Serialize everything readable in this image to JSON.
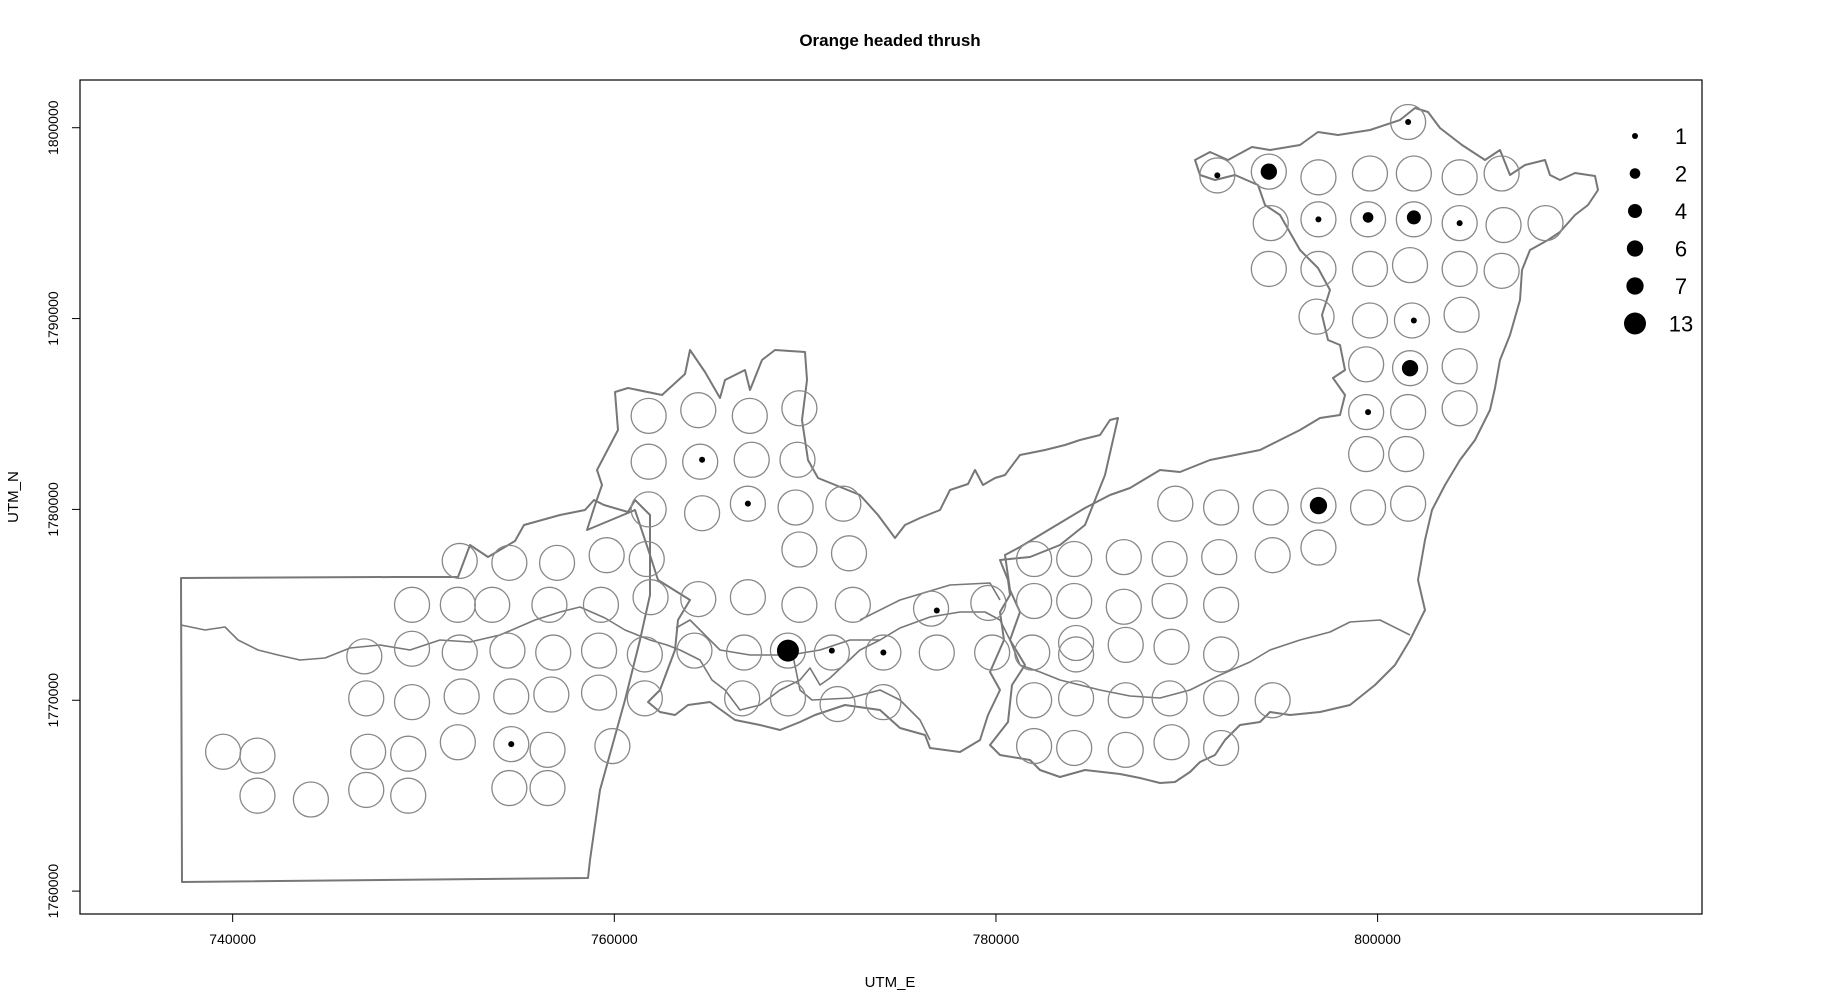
{
  "chart_data": {
    "type": "scatter",
    "title": "Orange headed thrush",
    "xlabel": "UTM_E",
    "ylabel": "UTM_N",
    "xlim": [
      732000,
      817000
    ],
    "ylim": [
      1758800,
      1802500
    ],
    "x_ticks": [
      740000,
      760000,
      780000,
      800000
    ],
    "y_ticks": [
      1760000,
      1770000,
      1780000,
      1790000,
      1800000
    ],
    "x_tick_labels": [
      "740000",
      "760000",
      "780000",
      "800000"
    ],
    "y_tick_labels": [
      "1760000",
      "1770000",
      "1780000",
      "1790000",
      "1800000"
    ],
    "grid": false,
    "legend_position": "top-right",
    "legend": [
      {
        "label": "1",
        "value": 1
      },
      {
        "label": "2",
        "value": 2
      },
      {
        "label": "4",
        "value": 4
      },
      {
        "label": "6",
        "value": 6
      },
      {
        "label": "7",
        "value": 7
      },
      {
        "label": "13",
        "value": 13
      }
    ],
    "sampling_points": [
      [
        739500,
        1767300
      ],
      [
        741300,
        1767100
      ],
      [
        741300,
        1765000
      ],
      [
        744100,
        1764800
      ],
      [
        747100,
        1767300
      ],
      [
        747000,
        1765300
      ],
      [
        749200,
        1767200
      ],
      [
        749200,
        1765000
      ],
      [
        751800,
        1767800
      ],
      [
        754600,
        1767700
      ],
      [
        756500,
        1767400
      ],
      [
        754500,
        1765400
      ],
      [
        756500,
        1765400
      ],
      [
        759900,
        1767600
      ],
      [
        747000,
        1770100
      ],
      [
        749400,
        1769900
      ],
      [
        752000,
        1770200
      ],
      [
        754600,
        1770200
      ],
      [
        756700,
        1770300
      ],
      [
        759200,
        1770400
      ],
      [
        761600,
        1770100
      ],
      [
        746900,
        1772300
      ],
      [
        749400,
        1772700
      ],
      [
        751900,
        1772500
      ],
      [
        754400,
        1772600
      ],
      [
        756800,
        1772500
      ],
      [
        759200,
        1772600
      ],
      [
        761600,
        1772400
      ],
      [
        764200,
        1772600
      ],
      [
        766800,
        1772500
      ],
      [
        769100,
        1772600
      ],
      [
        771400,
        1772500
      ],
      [
        774100,
        1772500
      ],
      [
        776900,
        1772500
      ],
      [
        779800,
        1772500
      ],
      [
        769100,
        1770100
      ],
      [
        771700,
        1769800
      ],
      [
        774100,
        1769900
      ],
      [
        766700,
        1770100
      ],
      [
        749400,
        1775000
      ],
      [
        751800,
        1775000
      ],
      [
        753600,
        1775000
      ],
      [
        756600,
        1775000
      ],
      [
        759300,
        1775000
      ],
      [
        761900,
        1775400
      ],
      [
        764400,
        1775300
      ],
      [
        767000,
        1775400
      ],
      [
        769700,
        1775000
      ],
      [
        772500,
        1775000
      ],
      [
        776600,
        1774800
      ],
      [
        779600,
        1775100
      ],
      [
        751900,
        1777300
      ],
      [
        754500,
        1777200
      ],
      [
        757000,
        1777200
      ],
      [
        759600,
        1777600
      ],
      [
        761700,
        1777400
      ],
      [
        769700,
        1777900
      ],
      [
        772300,
        1777700
      ],
      [
        761800,
        1780000
      ],
      [
        764600,
        1779800
      ],
      [
        767000,
        1780300
      ],
      [
        769500,
        1780100
      ],
      [
        772000,
        1780300
      ],
      [
        761800,
        1782500
      ],
      [
        764500,
        1782500
      ],
      [
        767200,
        1782600
      ],
      [
        769600,
        1782600
      ],
      [
        761800,
        1784900
      ],
      [
        764400,
        1785200
      ],
      [
        767100,
        1784900
      ],
      [
        769700,
        1785300
      ],
      [
        782000,
        1775200
      ],
      [
        784100,
        1775200
      ],
      [
        786700,
        1774900
      ],
      [
        789100,
        1775200
      ],
      [
        791800,
        1775000
      ],
      [
        782000,
        1777400
      ],
      [
        784100,
        1777400
      ],
      [
        786700,
        1777500
      ],
      [
        789100,
        1777400
      ],
      [
        791700,
        1777500
      ],
      [
        794500,
        1777600
      ],
      [
        796900,
        1778000
      ],
      [
        784200,
        1773000
      ],
      [
        786800,
        1772900
      ],
      [
        789200,
        1772800
      ],
      [
        791800,
        1772400
      ],
      [
        781900,
        1772500
      ],
      [
        784200,
        1772400
      ],
      [
        789100,
        1770100
      ],
      [
        791800,
        1770100
      ],
      [
        794500,
        1770000
      ],
      [
        782000,
        1770000
      ],
      [
        784200,
        1770100
      ],
      [
        786800,
        1770000
      ],
      [
        782000,
        1767600
      ],
      [
        784100,
        1767500
      ],
      [
        786800,
        1767400
      ],
      [
        789200,
        1767800
      ],
      [
        791800,
        1767500
      ],
      [
        789400,
        1780300
      ],
      [
        791800,
        1780100
      ],
      [
        794400,
        1780100
      ],
      [
        796900,
        1780200
      ],
      [
        799500,
        1780100
      ],
      [
        801600,
        1780300
      ],
      [
        799400,
        1782900
      ],
      [
        801500,
        1782900
      ],
      [
        799400,
        1785100
      ],
      [
        801600,
        1785100
      ],
      [
        804300,
        1785300
      ],
      [
        799400,
        1787600
      ],
      [
        801700,
        1787400
      ],
      [
        804300,
        1787500
      ],
      [
        796800,
        1790100
      ],
      [
        799600,
        1789900
      ],
      [
        801800,
        1789900
      ],
      [
        804400,
        1790200
      ],
      [
        794300,
        1792600
      ],
      [
        796900,
        1792600
      ],
      [
        799600,
        1792600
      ],
      [
        801700,
        1792800
      ],
      [
        804300,
        1792600
      ],
      [
        806500,
        1792500
      ],
      [
        794400,
        1795000
      ],
      [
        796900,
        1795200
      ],
      [
        799500,
        1795200
      ],
      [
        801900,
        1795200
      ],
      [
        804300,
        1795000
      ],
      [
        806600,
        1794900
      ],
      [
        808800,
        1795000
      ],
      [
        791600,
        1797500
      ],
      [
        794300,
        1797700
      ],
      [
        796900,
        1797400
      ],
      [
        799600,
        1797600
      ],
      [
        801900,
        1797600
      ],
      [
        804300,
        1797400
      ],
      [
        806500,
        1797600
      ],
      [
        801600,
        1800300
      ]
    ],
    "detections": [
      {
        "x": 769100,
        "y": 1772600,
        "count": 13
      },
      {
        "x": 771400,
        "y": 1772600,
        "count": 1
      },
      {
        "x": 774100,
        "y": 1772500,
        "count": 1
      },
      {
        "x": 776900,
        "y": 1774700,
        "count": 1
      },
      {
        "x": 764600,
        "y": 1782600,
        "count": 1
      },
      {
        "x": 767000,
        "y": 1780300,
        "count": 1
      },
      {
        "x": 754600,
        "y": 1767700,
        "count": 1
      },
      {
        "x": 796900,
        "y": 1780200,
        "count": 7
      },
      {
        "x": 799500,
        "y": 1785100,
        "count": 1
      },
      {
        "x": 801700,
        "y": 1787400,
        "count": 6
      },
      {
        "x": 801900,
        "y": 1789900,
        "count": 1
      },
      {
        "x": 796900,
        "y": 1795200,
        "count": 1
      },
      {
        "x": 799500,
        "y": 1795300,
        "count": 2
      },
      {
        "x": 801900,
        "y": 1795300,
        "count": 4
      },
      {
        "x": 804300,
        "y": 1795000,
        "count": 1
      },
      {
        "x": 794300,
        "y": 1797700,
        "count": 6
      },
      {
        "x": 791600,
        "y": 1797500,
        "count": 1
      },
      {
        "x": 801600,
        "y": 1800300,
        "count": 1
      }
    ],
    "colors": {
      "boundary": "#777777",
      "sampling_circle": "#888888",
      "detection": "#000000",
      "frame": "#000000"
    }
  }
}
